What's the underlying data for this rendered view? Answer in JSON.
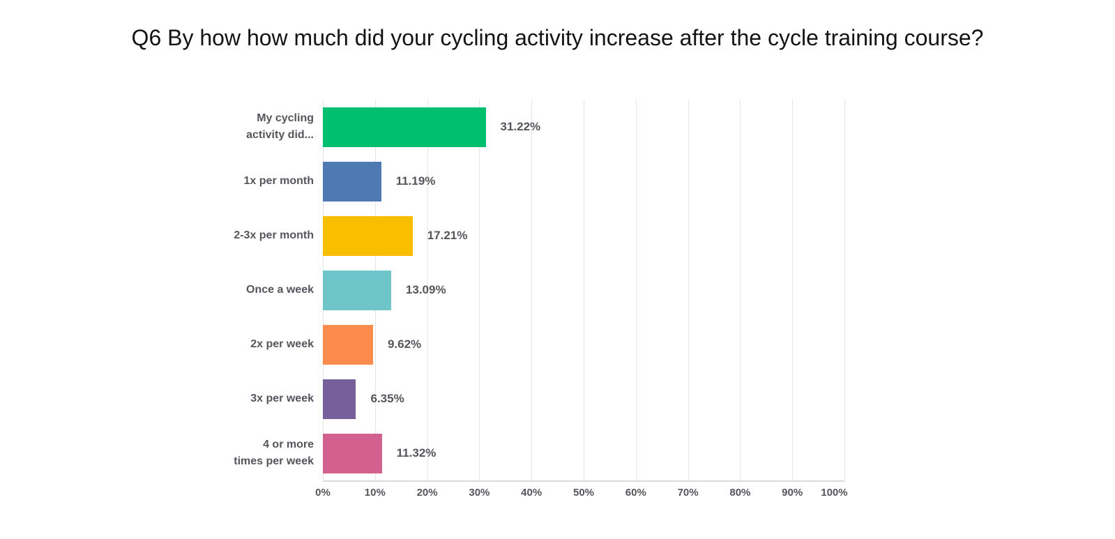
{
  "title": "Q6 By how how much did your cycling activity increase after the cycle training course?",
  "chart_data": {
    "type": "bar",
    "orientation": "horizontal",
    "title": "Q6 By how how much did your cycling activity increase after the cycle training course?",
    "categories": [
      "My cycling\nactivity did...",
      "1x per month",
      "2-3x per month",
      "Once a week",
      "2x per week",
      "3x per week",
      "4 or more\ntimes per week"
    ],
    "values": [
      31.22,
      11.19,
      17.21,
      13.09,
      9.62,
      6.35,
      11.32
    ],
    "value_labels": [
      "31.22%",
      "11.19%",
      "17.21%",
      "13.09%",
      "9.62%",
      "6.35%",
      "11.32%"
    ],
    "bar_colors": [
      "#00bf6f",
      "#4e79b2",
      "#f9be00",
      "#6ec6ca",
      "#fb8c4d",
      "#75609b",
      "#d3618f"
    ],
    "xlim": [
      0,
      100
    ],
    "x_tick_labels": [
      "0%",
      "10%",
      "20%",
      "30%",
      "40%",
      "50%",
      "60%",
      "70%",
      "80%",
      "90%",
      "100%"
    ],
    "grid": true,
    "legend": "none",
    "colors": {
      "gridline": "#e5e5e5",
      "axis_line": "#dadada",
      "label_text": "#54565b",
      "title_text": "#141414",
      "background": "#ffffff"
    }
  }
}
